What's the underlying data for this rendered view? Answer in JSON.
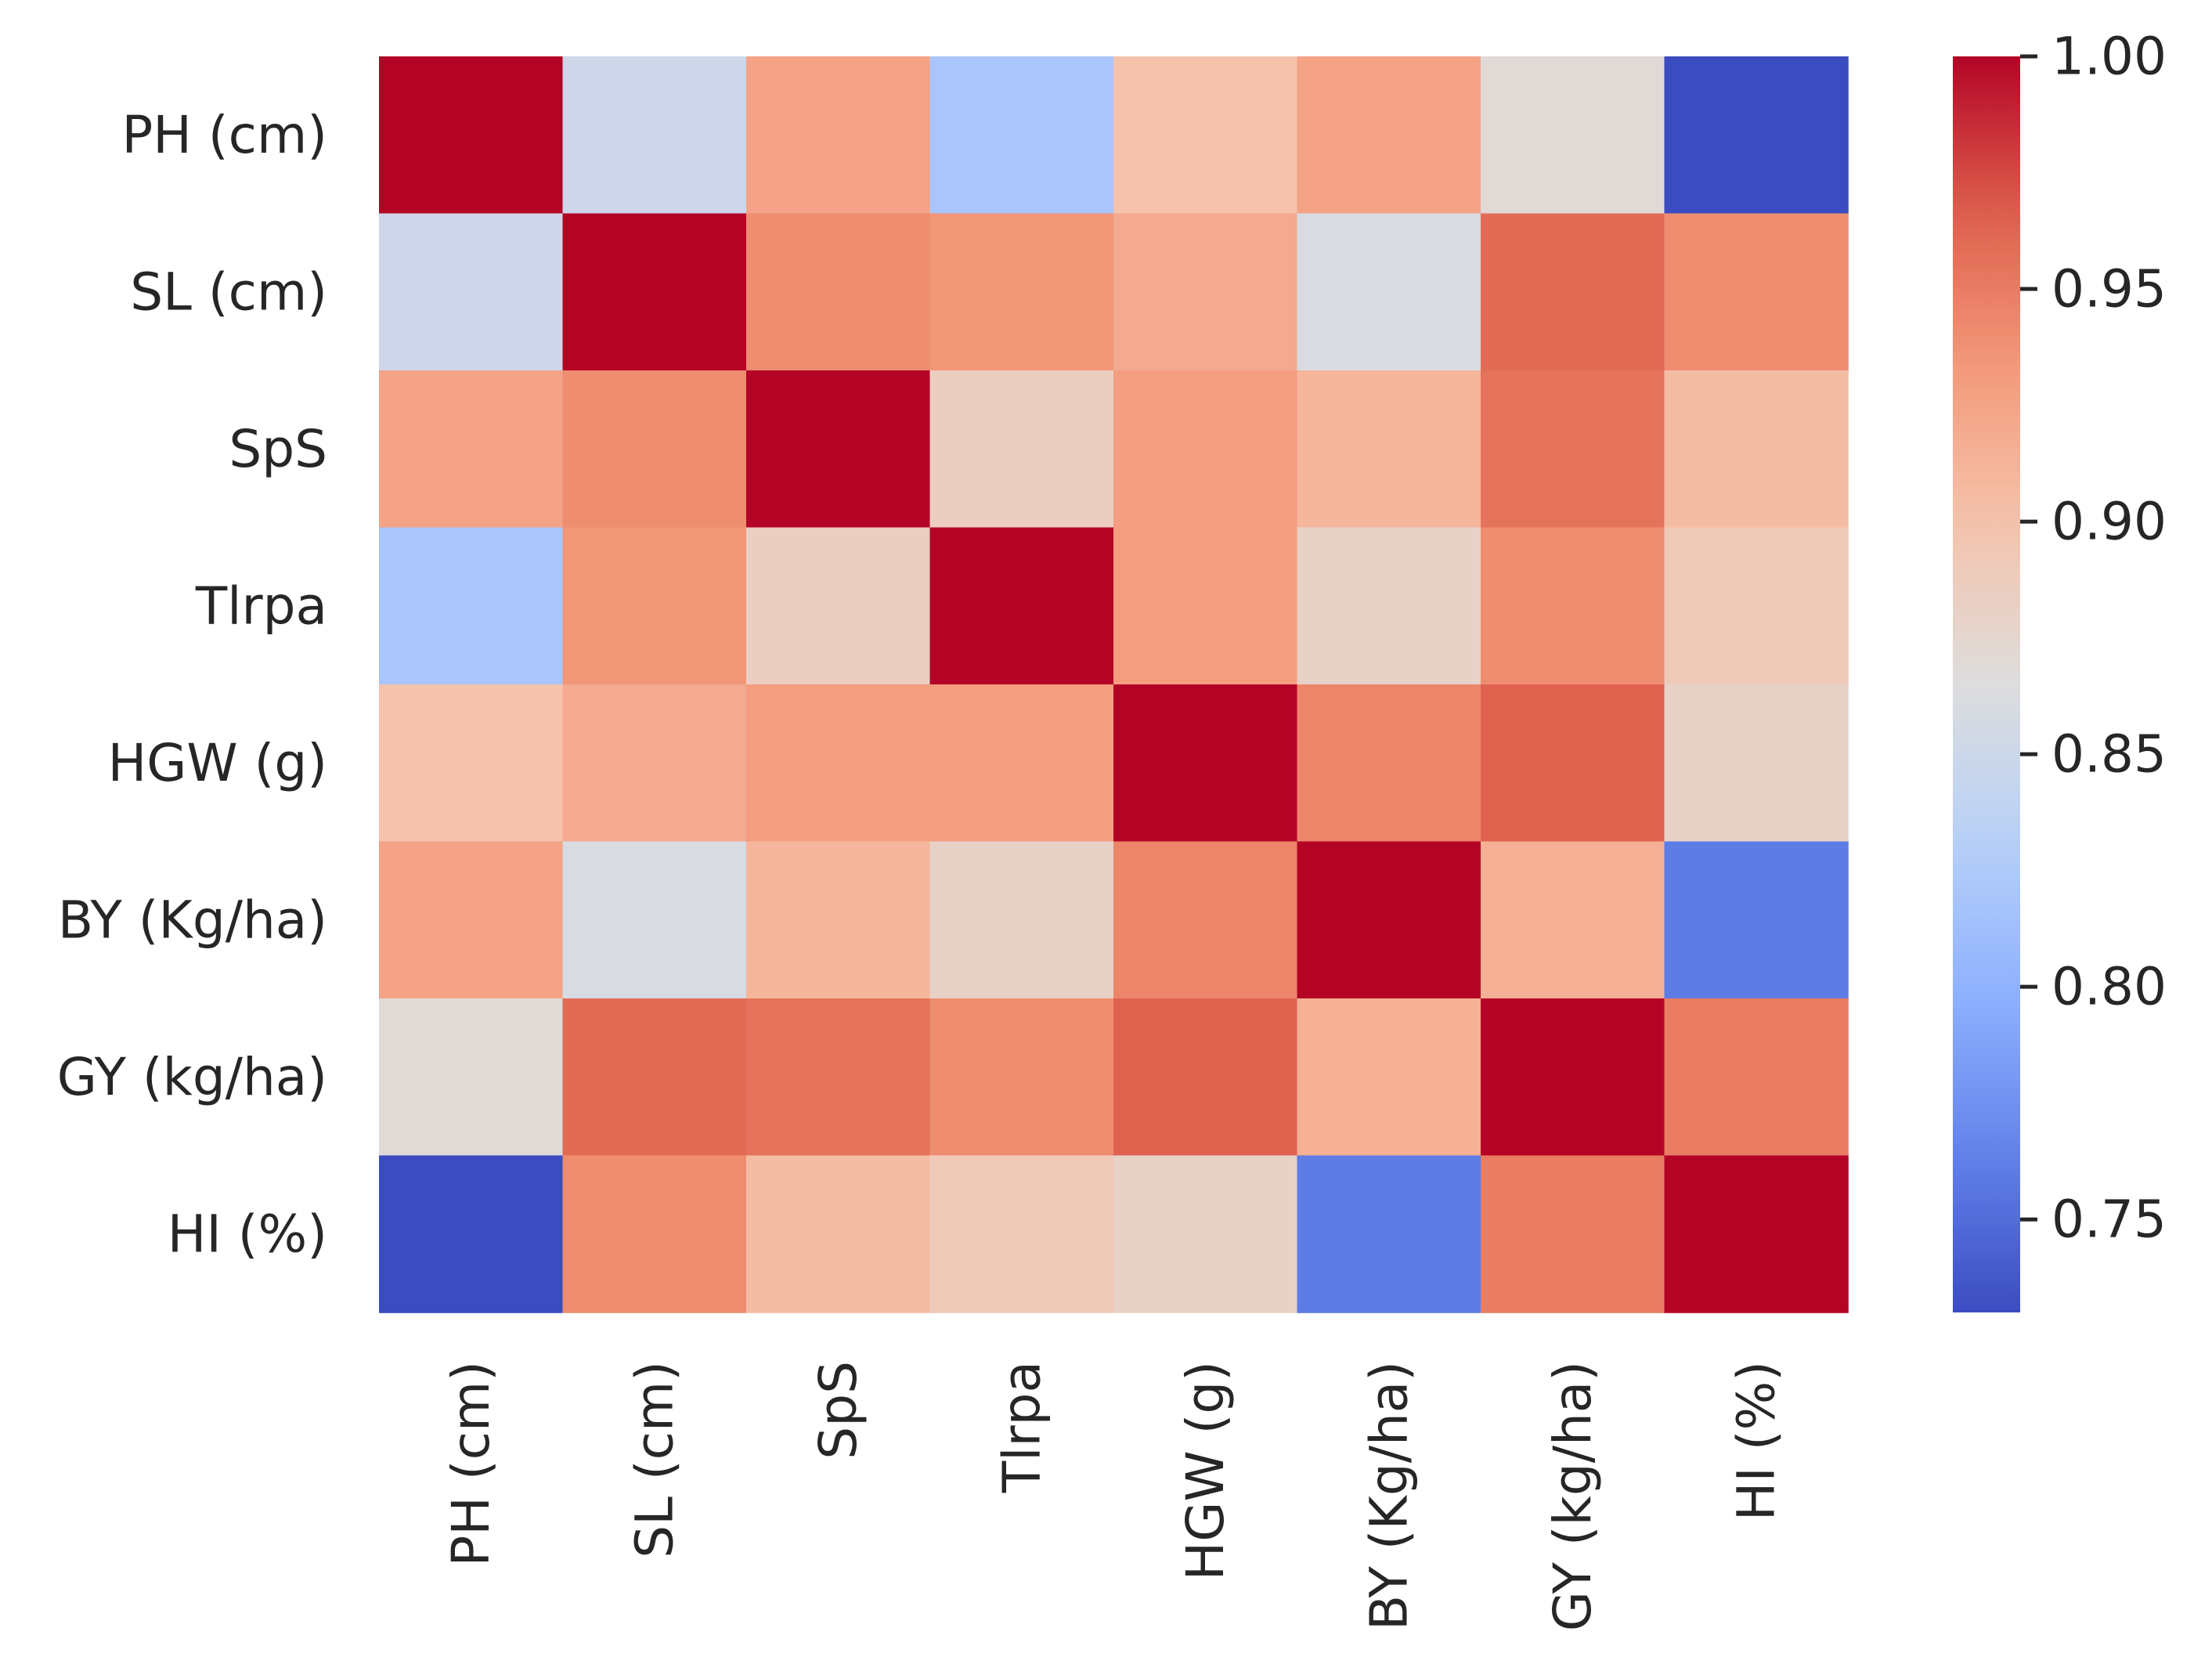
{
  "chart_data": {
    "type": "heatmap",
    "title": "",
    "xlabel": "",
    "ylabel": "",
    "colormap": "coolwarm",
    "row_labels": [
      "PH (cm)",
      "SL (cm)",
      "SpS",
      "Tlrpa",
      "HGW (g)",
      "BY (Kg/ha)",
      "GY (kg/ha)",
      "HI (%)"
    ],
    "col_labels": [
      "PH (cm)",
      "SL (cm)",
      "SpS",
      "Tlrpa",
      "HGW (g)",
      "BY (Kg/ha)",
      "GY (kg/ha)",
      "HI (%)"
    ],
    "values": [
      [
        1.0,
        0.85,
        0.925,
        0.82,
        0.9,
        0.925,
        0.87,
        0.73
      ],
      [
        0.85,
        1.0,
        0.94,
        0.935,
        0.92,
        0.86,
        0.96,
        0.94
      ],
      [
        0.925,
        0.94,
        1.0,
        0.885,
        0.93,
        0.91,
        0.955,
        0.905
      ],
      [
        0.82,
        0.935,
        0.885,
        1.0,
        0.93,
        0.88,
        0.94,
        0.89
      ],
      [
        0.9,
        0.92,
        0.93,
        0.93,
        1.0,
        0.945,
        0.965,
        0.88
      ],
      [
        0.925,
        0.86,
        0.91,
        0.88,
        0.945,
        1.0,
        0.915,
        0.76
      ],
      [
        0.87,
        0.96,
        0.955,
        0.94,
        0.965,
        0.915,
        1.0,
        0.95
      ],
      [
        0.73,
        0.94,
        0.905,
        0.89,
        0.88,
        0.76,
        0.95,
        1.0
      ]
    ],
    "vmin": 0.73,
    "vmax": 1.0,
    "colorbar": {
      "ticks": [
        1.0,
        0.95,
        0.9,
        0.85,
        0.8,
        0.75
      ],
      "tick_labels": [
        "1.00",
        "0.95",
        "0.90",
        "0.85",
        "0.80",
        "0.75"
      ]
    }
  }
}
